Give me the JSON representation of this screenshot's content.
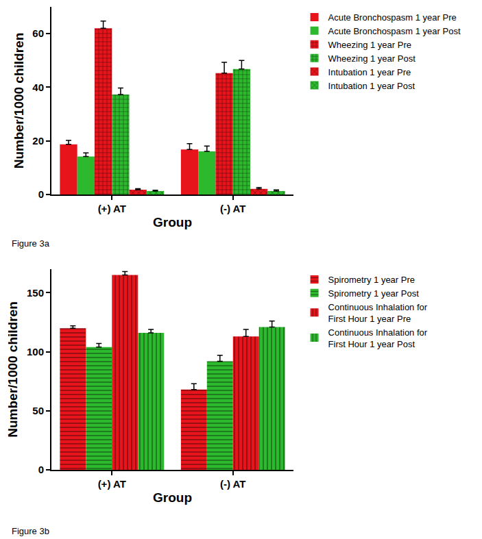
{
  "chart_data": [
    {
      "type": "bar",
      "title": "Figure 3a",
      "x_label": "Group",
      "y_label": "Number/1000 children",
      "categories": [
        "(+) AT",
        "(-) AT"
      ],
      "ylim": [
        0,
        70
      ],
      "yticks": [
        0,
        20,
        40,
        60
      ],
      "grid": false,
      "legend": "right",
      "series": [
        {
          "name": "Acute Bronchospasm 1 year Pre",
          "color": "#e8141b",
          "marker": "solid",
          "values": [
            18.7,
            16.8
          ],
          "errors": [
            1.5,
            2.2
          ]
        },
        {
          "name": "Acute Bronchospasm 1 year Post",
          "color": "#2db92d",
          "marker": "solid",
          "values": [
            14.2,
            16.1
          ],
          "errors": [
            1.3,
            2.0
          ]
        },
        {
          "name": "Wheezing 1 year Pre",
          "color": "#e8141b",
          "marker": "grid",
          "values": [
            62.0,
            45.3
          ],
          "errors": [
            2.7,
            4.0
          ]
        },
        {
          "name": "Wheezing 1 year Post",
          "color": "#2db92d",
          "marker": "grid",
          "values": [
            37.3,
            46.8
          ],
          "errors": [
            2.4,
            3.2
          ]
        },
        {
          "name": "Intubation 1 year Pre",
          "color": "#e8141b",
          "marker": "cross",
          "values": [
            1.8,
            2.1
          ],
          "errors": [
            0.4,
            0.5
          ]
        },
        {
          "name": "Intubation 1 year Post",
          "color": "#2db92d",
          "marker": "cross",
          "values": [
            1.3,
            1.3
          ],
          "errors": [
            0.3,
            0.4
          ]
        }
      ]
    },
    {
      "type": "bar",
      "title": "Figure 3b",
      "x_label": "Group",
      "y_label": "Number/1000 children",
      "categories": [
        "(+) AT",
        "(-) AT"
      ],
      "ylim": [
        0,
        170
      ],
      "yticks": [
        0,
        50,
        100,
        150
      ],
      "grid": false,
      "legend": "right",
      "series": [
        {
          "name": "Spirometry 1 year Pre",
          "color": "#e8141b",
          "marker": "horizontal",
          "values": [
            120,
            68
          ],
          "errors": [
            2,
            5
          ]
        },
        {
          "name": "Spirometry 1 year Post",
          "color": "#2db92d",
          "marker": "horizontal",
          "values": [
            104,
            92
          ],
          "errors": [
            3,
            5
          ]
        },
        {
          "name": "Continuous Inhalation for First Hour 1 year Pre",
          "color": "#e8141b",
          "marker": "vertical",
          "values": [
            165,
            113
          ],
          "errors": [
            3,
            6
          ]
        },
        {
          "name": "Continuous Inhalation for First Hour 1 year Post",
          "color": "#2db92d",
          "marker": "vertical",
          "values": [
            116,
            121
          ],
          "errors": [
            3,
            5
          ]
        }
      ]
    }
  ]
}
